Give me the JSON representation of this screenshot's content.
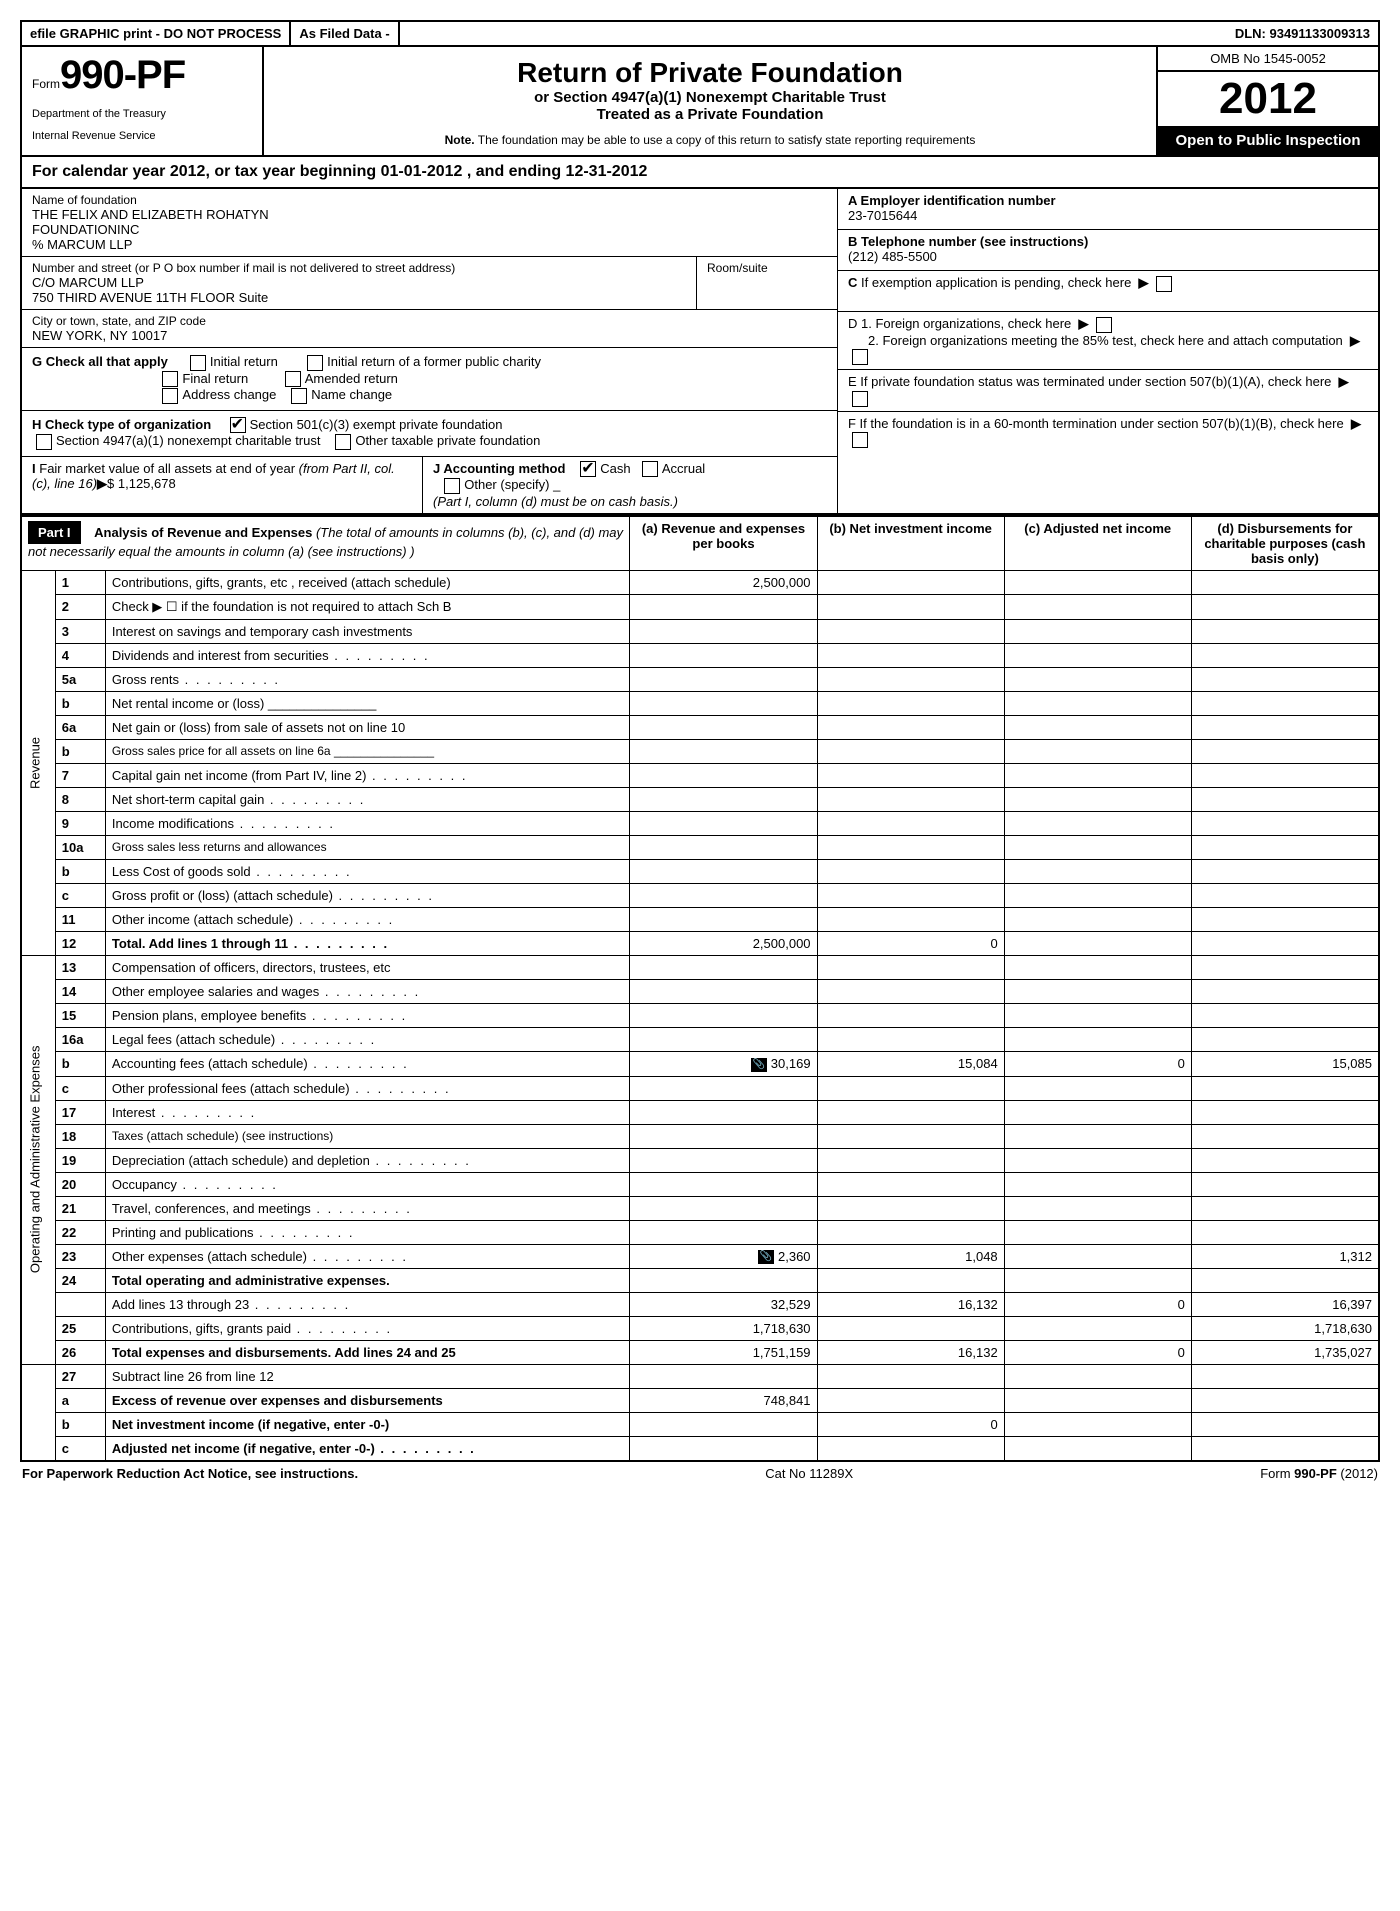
{
  "topbar": {
    "efile": "efile GRAPHIC print - DO NOT PROCESS",
    "asfiled": "As Filed Data -",
    "dln_label": "DLN:",
    "dln": "93491133009313"
  },
  "header": {
    "form_prefix": "Form",
    "form_no": "990-PF",
    "dept1": "Department of the Treasury",
    "dept2": "Internal Revenue Service",
    "title": "Return of Private Foundation",
    "sub1": "or Section 4947(a)(1) Nonexempt Charitable Trust",
    "sub2": "Treated as a Private Foundation",
    "note_label": "Note.",
    "note": "The foundation may be able to use a copy of this return to satisfy state reporting requirements",
    "omb": "OMB No 1545-0052",
    "year": "2012",
    "open": "Open to Public Inspection"
  },
  "calyear": "For calendar year 2012, or tax year beginning 01-01-2012     , and ending 12-31-2012",
  "entity": {
    "name_lbl": "Name of foundation",
    "name1": "THE FELIX AND ELIZABETH ROHATYN",
    "name2": "FOUNDATIONINC",
    "name3": "% MARCUM LLP",
    "addr_lbl": "Number and street (or P O  box number if mail is not delivered to street address)",
    "room_lbl": "Room/suite",
    "addr1": "C/O MARCUM LLP",
    "addr2": "750 THIRD AVENUE 11TH FLOOR Suite",
    "city_lbl": "City or town, state, and ZIP code",
    "city": "NEW YORK, NY  10017",
    "a_lbl": "A Employer identification number",
    "ein": "23-7015644",
    "b_lbl": "B Telephone number (see instructions)",
    "phone": "(212) 485-5500",
    "c_lbl": "C If exemption application is pending, check here",
    "d1": "D 1. Foreign organizations, check here",
    "d2": "2. Foreign organizations meeting the 85% test, check here and attach computation",
    "e": "E  If private foundation status was terminated under section 507(b)(1)(A), check here",
    "f": "F  If the foundation is in a 60-month termination under section 507(b)(1)(B), check here"
  },
  "g": {
    "label": "G Check all that apply",
    "initial": "Initial return",
    "initial_former": "Initial return of a former public charity",
    "final": "Final return",
    "amended": "Amended return",
    "addr_change": "Address change",
    "name_change": "Name change"
  },
  "h": {
    "label": "H Check type of organization",
    "c1": "Section 501(c)(3) exempt private foundation",
    "c2": "Section 4947(a)(1) nonexempt charitable trust",
    "c3": "Other taxable private foundation"
  },
  "i": {
    "label": "I Fair market value of all assets at end of year (from Part II, col. (c), line 16)",
    "val": "$  1,125,678"
  },
  "j": {
    "label": "J Accounting method",
    "cash": "Cash",
    "accrual": "Accrual",
    "other": "Other (specify)",
    "note": "(Part I, column (d) must be on cash basis.)"
  },
  "part1": {
    "hdr": "Part I",
    "title": "Analysis of Revenue and Expenses",
    "title_note": "(The total of amounts in columns (b), (c), and (d) may not necessarily equal the amounts in column (a) (see instructions) )",
    "col_a": "(a) Revenue and expenses per books",
    "col_b": "(b) Net investment income",
    "col_c": "(c) Adjusted net income",
    "col_d": "(d) Disbursements for charitable purposes (cash basis only)",
    "side_rev": "Revenue",
    "side_exp": "Operating and Administrative Expenses"
  },
  "rows": [
    {
      "n": "1",
      "d": "Contributions, gifts, grants, etc , received (attach schedule)",
      "a": "2,500,000",
      "b": "",
      "c": "",
      "dcol": ""
    },
    {
      "n": "2",
      "d": "Check ▶ ☐ if the foundation is not required to attach Sch  B",
      "a": "",
      "b": "",
      "c": "",
      "dcol": ""
    },
    {
      "n": "3",
      "d": "Interest on savings and temporary cash investments",
      "a": "",
      "b": "",
      "c": "",
      "dcol": ""
    },
    {
      "n": "4",
      "d": "Dividends and interest from securities",
      "a": "",
      "b": "",
      "c": "",
      "dcol": "",
      "dots": true
    },
    {
      "n": "5a",
      "d": "Gross rents",
      "a": "",
      "b": "",
      "c": "",
      "dcol": "",
      "dots": true
    },
    {
      "n": "b",
      "d": "Net rental income or (loss) _______________",
      "a": "",
      "b": "",
      "c": "",
      "dcol": ""
    },
    {
      "n": "6a",
      "d": "Net gain or (loss) from sale of assets not on line 10",
      "a": "",
      "b": "",
      "c": "",
      "dcol": ""
    },
    {
      "n": "b",
      "d": "Gross sales price for all assets on line 6a _______________",
      "a": "",
      "b": "",
      "c": "",
      "dcol": "",
      "small": true
    },
    {
      "n": "7",
      "d": "Capital gain net income (from Part IV, line 2)",
      "a": "",
      "b": "",
      "c": "",
      "dcol": "",
      "dots": true
    },
    {
      "n": "8",
      "d": "Net short-term capital gain",
      "a": "",
      "b": "",
      "c": "",
      "dcol": "",
      "dots": true
    },
    {
      "n": "9",
      "d": "Income modifications",
      "a": "",
      "b": "",
      "c": "",
      "dcol": "",
      "dots": true
    },
    {
      "n": "10a",
      "d": "Gross sales less returns and allowances",
      "a": "",
      "b": "",
      "c": "",
      "dcol": "",
      "small": true
    },
    {
      "n": "b",
      "d": "Less  Cost of goods sold",
      "a": "",
      "b": "",
      "c": "",
      "dcol": "",
      "dots": true
    },
    {
      "n": "c",
      "d": "Gross profit or (loss) (attach schedule)",
      "a": "",
      "b": "",
      "c": "",
      "dcol": "",
      "dots": true
    },
    {
      "n": "11",
      "d": "Other income (attach schedule)",
      "a": "",
      "b": "",
      "c": "",
      "dcol": "",
      "dots": true
    },
    {
      "n": "12",
      "d": "Total. Add lines 1 through 11",
      "a": "2,500,000",
      "b": "0",
      "c": "",
      "dcol": "",
      "dots": true,
      "bold": true
    }
  ],
  "exp_rows": [
    {
      "n": "13",
      "d": "Compensation of officers, directors, trustees, etc",
      "a": "",
      "b": "",
      "c": "",
      "dcol": ""
    },
    {
      "n": "14",
      "d": "Other employee salaries and wages",
      "a": "",
      "b": "",
      "c": "",
      "dcol": "",
      "dots": true
    },
    {
      "n": "15",
      "d": "Pension plans, employee benefits",
      "a": "",
      "b": "",
      "c": "",
      "dcol": "",
      "dots": true
    },
    {
      "n": "16a",
      "d": "Legal fees (attach schedule)",
      "a": "",
      "b": "",
      "c": "",
      "dcol": "",
      "dots": true
    },
    {
      "n": "b",
      "d": "Accounting fees (attach schedule)",
      "a": "30,169",
      "b": "15,084",
      "c": "0",
      "dcol": "15,085",
      "dots": true,
      "icon": true
    },
    {
      "n": "c",
      "d": "Other professional fees (attach schedule)",
      "a": "",
      "b": "",
      "c": "",
      "dcol": "",
      "dots": true
    },
    {
      "n": "17",
      "d": "Interest",
      "a": "",
      "b": "",
      "c": "",
      "dcol": "",
      "dots": true
    },
    {
      "n": "18",
      "d": "Taxes (attach schedule) (see instructions)",
      "a": "",
      "b": "",
      "c": "",
      "dcol": "",
      "small": true
    },
    {
      "n": "19",
      "d": "Depreciation (attach schedule) and depletion",
      "a": "",
      "b": "",
      "c": "",
      "dcol": "",
      "dots": true
    },
    {
      "n": "20",
      "d": "Occupancy",
      "a": "",
      "b": "",
      "c": "",
      "dcol": "",
      "dots": true
    },
    {
      "n": "21",
      "d": "Travel, conferences, and meetings",
      "a": "",
      "b": "",
      "c": "",
      "dcol": "",
      "dots": true
    },
    {
      "n": "22",
      "d": "Printing and publications",
      "a": "",
      "b": "",
      "c": "",
      "dcol": "",
      "dots": true
    },
    {
      "n": "23",
      "d": "Other expenses (attach schedule)",
      "a": "2,360",
      "b": "1,048",
      "c": "",
      "dcol": "1,312",
      "dots": true,
      "icon": true
    },
    {
      "n": "24",
      "d": "Total operating and administrative expenses.",
      "a": "",
      "b": "",
      "c": "",
      "dcol": "",
      "bold": true
    },
    {
      "n": "",
      "d": "Add lines 13 through 23",
      "a": "32,529",
      "b": "16,132",
      "c": "0",
      "dcol": "16,397",
      "dots": true
    },
    {
      "n": "25",
      "d": "Contributions, gifts, grants paid",
      "a": "1,718,630",
      "b": "",
      "c": "",
      "dcol": "1,718,630",
      "dots": true
    },
    {
      "n": "26",
      "d": "Total expenses and disbursements. Add lines 24 and 25",
      "a": "1,751,159",
      "b": "16,132",
      "c": "0",
      "dcol": "1,735,027",
      "bold": true
    }
  ],
  "bottom_rows": [
    {
      "n": "27",
      "d": "Subtract line 26 from line 12",
      "a": "",
      "b": "",
      "c": "",
      "dcol": ""
    },
    {
      "n": "a",
      "d": "Excess of revenue over expenses and disbursements",
      "a": "748,841",
      "b": "",
      "c": "",
      "dcol": "",
      "bold": true
    },
    {
      "n": "b",
      "d": "Net investment income (if negative, enter -0-)",
      "a": "",
      "b": "0",
      "c": "",
      "dcol": "",
      "bold": true
    },
    {
      "n": "c",
      "d": "Adjusted net income (if negative, enter -0-)",
      "a": "",
      "b": "",
      "c": "",
      "dcol": "",
      "bold": true,
      "dots": true
    }
  ],
  "footer": {
    "left": "For Paperwork Reduction Act Notice, see instructions.",
    "mid": "Cat No  11289X",
    "right": "Form 990-PF (2012)"
  }
}
